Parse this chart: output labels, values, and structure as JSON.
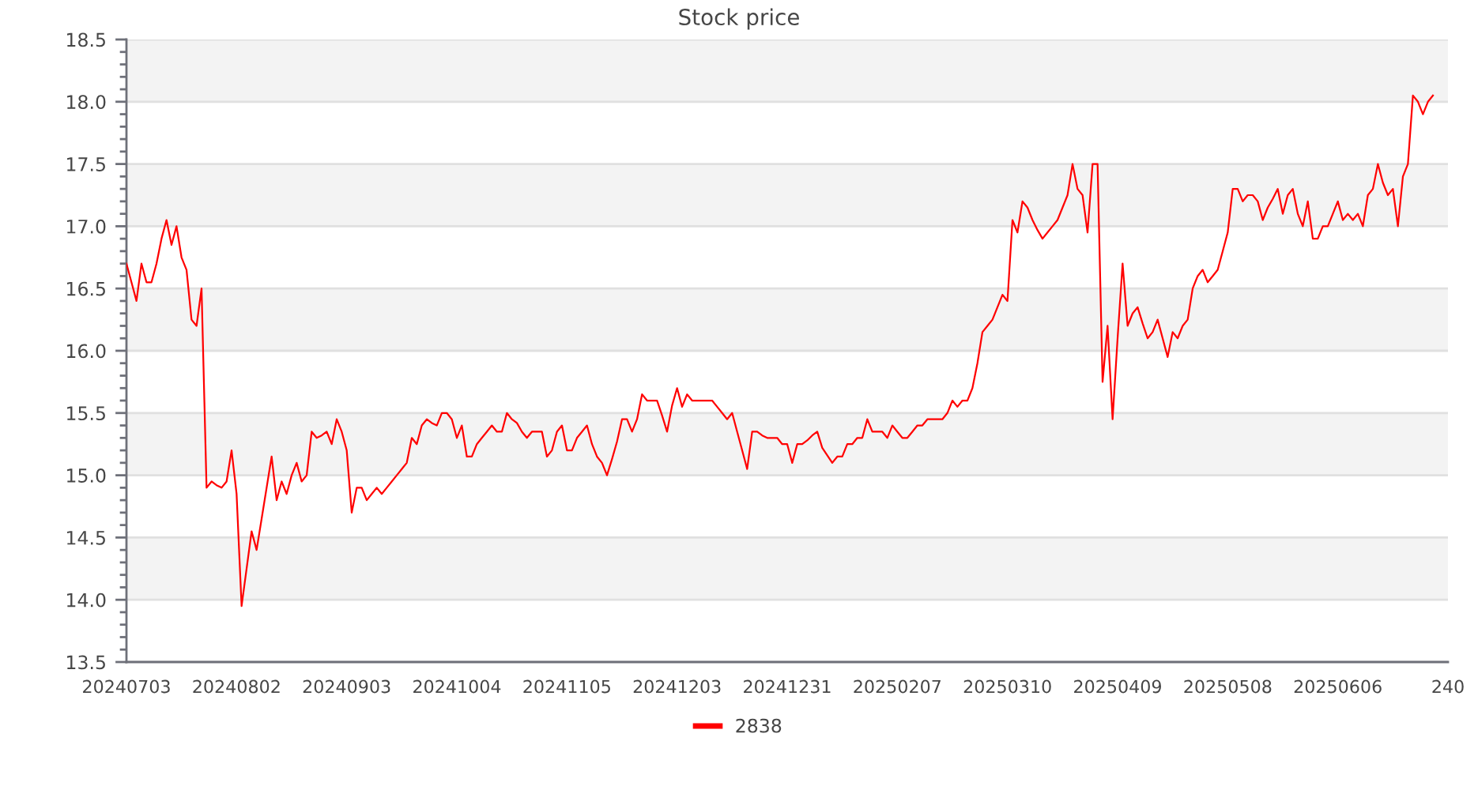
{
  "chart_data": {
    "type": "line",
    "title": "Stock price",
    "categories": [
      "20240703",
      null,
      null,
      null,
      null,
      null,
      null,
      null,
      null,
      null,
      null,
      null,
      null,
      null,
      null,
      null,
      null,
      null,
      null,
      null,
      null,
      null,
      "20240802",
      null,
      null,
      null,
      null,
      null,
      null,
      null,
      null,
      null,
      null,
      null,
      null,
      null,
      null,
      null,
      null,
      null,
      null,
      null,
      null,
      null,
      "20240903",
      null,
      null,
      null,
      null,
      null,
      null,
      null,
      null,
      null,
      null,
      null,
      null,
      null,
      null,
      null,
      null,
      null,
      null,
      null,
      null,
      null,
      "20241004",
      null,
      null,
      null,
      null,
      null,
      null,
      null,
      null,
      null,
      null,
      null,
      null,
      null,
      null,
      null,
      null,
      null,
      null,
      null,
      null,
      null,
      "20241105",
      null,
      null,
      null,
      null,
      null,
      null,
      null,
      null,
      null,
      null,
      null,
      null,
      null,
      null,
      null,
      null,
      null,
      null,
      null,
      null,
      null,
      "20241203",
      null,
      null,
      null,
      null,
      null,
      null,
      null,
      null,
      null,
      null,
      null,
      null,
      null,
      null,
      null,
      null,
      null,
      null,
      null,
      null,
      null,
      "20241231",
      null,
      null,
      null,
      null,
      null,
      null,
      null,
      null,
      null,
      null,
      null,
      null,
      null,
      null,
      null,
      null,
      null,
      null,
      null,
      null,
      null,
      "20250207",
      null,
      null,
      null,
      null,
      null,
      null,
      null,
      null,
      null,
      null,
      null,
      null,
      null,
      null,
      null,
      null,
      null,
      null,
      null,
      null,
      null,
      "20250310",
      null,
      null,
      null,
      null,
      null,
      null,
      null,
      null,
      null,
      null,
      null,
      null,
      null,
      null,
      null,
      null,
      null,
      null,
      null,
      null,
      null,
      "20250409",
      null,
      null,
      null,
      null,
      null,
      null,
      null,
      null,
      null,
      null,
      null,
      null,
      null,
      null,
      null,
      null,
      null,
      null,
      null,
      null,
      null,
      "20250508",
      null,
      null,
      null,
      null,
      null,
      null,
      null,
      null,
      null,
      null,
      null,
      null,
      null,
      null,
      null,
      null,
      null,
      null,
      null,
      null,
      null,
      "20250606",
      null,
      null,
      null,
      null,
      null,
      null,
      null,
      null,
      null,
      null,
      null,
      null,
      null,
      null,
      null,
      null,
      null,
      null,
      null,
      null,
      null,
      "240"
    ],
    "series": [
      {
        "name": "2838",
        "color": "#ff0000",
        "values": [
          16.7,
          16.55,
          16.4,
          16.7,
          16.55,
          16.55,
          16.7,
          16.9,
          17.05,
          16.85,
          17.0,
          16.75,
          16.65,
          16.25,
          16.2,
          16.5,
          14.9,
          14.95,
          14.92,
          14.9,
          14.95,
          15.2,
          14.85,
          13.95,
          14.25,
          14.55,
          14.4,
          14.65,
          14.9,
          15.15,
          14.8,
          14.95,
          14.85,
          15.0,
          15.1,
          14.95,
          15.0,
          15.35,
          15.3,
          15.32,
          15.35,
          15.25,
          15.45,
          15.35,
          15.2,
          14.7,
          14.9,
          14.9,
          14.8,
          14.85,
          14.9,
          14.85,
          14.9,
          14.95,
          15.0,
          15.05,
          15.1,
          15.3,
          15.25,
          15.4,
          15.45,
          15.42,
          15.4,
          15.5,
          15.5,
          15.45,
          15.3,
          15.4,
          15.15,
          15.15,
          15.25,
          15.3,
          15.35,
          15.4,
          15.35,
          15.35,
          15.5,
          15.45,
          15.42,
          15.35,
          15.3,
          15.35,
          15.35,
          15.35,
          15.15,
          15.2,
          15.35,
          15.4,
          15.2,
          15.2,
          15.3,
          15.35,
          15.4,
          15.25,
          15.15,
          15.1,
          15.0,
          15.13,
          15.27,
          15.45,
          15.45,
          15.35,
          15.45,
          15.65,
          15.6,
          15.6,
          15.6,
          15.48,
          15.35,
          15.56,
          15.7,
          15.55,
          15.65,
          15.6,
          15.6,
          15.6,
          15.6,
          15.6,
          15.55,
          15.5,
          15.45,
          15.5,
          15.35,
          15.2,
          15.05,
          15.35,
          15.35,
          15.32,
          15.3,
          15.3,
          15.3,
          15.25,
          15.25,
          15.1,
          15.25,
          15.25,
          15.28,
          15.32,
          15.35,
          15.22,
          15.16,
          15.1,
          15.15,
          15.15,
          15.25,
          15.25,
          15.3,
          15.3,
          15.45,
          15.35,
          15.35,
          15.35,
          15.3,
          15.4,
          15.35,
          15.3,
          15.3,
          15.35,
          15.4,
          15.4,
          15.45,
          15.45,
          15.45,
          15.45,
          15.5,
          15.6,
          15.55,
          15.6,
          15.6,
          15.7,
          15.9,
          16.15,
          16.2,
          16.25,
          16.35,
          16.45,
          16.4,
          17.05,
          16.95,
          17.2,
          17.15,
          17.05,
          16.97,
          16.9,
          16.95,
          17.0,
          17.05,
          17.15,
          17.25,
          17.5,
          17.3,
          17.25,
          16.95,
          17.5,
          17.5,
          15.75,
          16.2,
          15.45,
          16.1,
          16.7,
          16.2,
          16.3,
          16.35,
          16.22,
          16.1,
          16.15,
          16.25,
          16.1,
          15.95,
          16.15,
          16.1,
          16.2,
          16.25,
          16.5,
          16.6,
          16.65,
          16.55,
          16.6,
          16.65,
          16.8,
          16.95,
          17.3,
          17.3,
          17.2,
          17.25,
          17.25,
          17.2,
          17.05,
          17.15,
          17.22,
          17.3,
          17.1,
          17.25,
          17.3,
          17.1,
          17.0,
          17.2,
          16.9,
          16.9,
          17.0,
          17.0,
          17.1,
          17.2,
          17.05,
          17.1,
          17.05,
          17.1,
          17.0,
          17.25,
          17.3,
          17.5,
          17.35,
          17.25,
          17.3,
          17.0,
          17.4,
          17.5,
          18.05,
          18.0,
          17.9,
          18.0,
          18.05,
          null,
          null,
          null
        ]
      }
    ],
    "ylim": [
      13.5,
      18.5
    ],
    "yticks": [
      13.5,
      {
        "value": 14,
        "label": "14.0"
      },
      14.5,
      {
        "value": 15,
        "label": "15.0"
      },
      15.5,
      {
        "value": 16,
        "label": "16.0"
      },
      16.5,
      {
        "value": 17,
        "label": "17.0"
      },
      17.5,
      {
        "value": 18,
        "label": "18.0"
      },
      18.5
    ],
    "bands": [
      {
        "axis": "y",
        "from": 14.0,
        "to": 14.5,
        "color": "#f3f3f3"
      },
      {
        "axis": "y",
        "from": 15.0,
        "to": 15.5,
        "color": "#f3f3f3"
      },
      {
        "axis": "y",
        "from": 16.0,
        "to": 16.5,
        "color": "#f3f3f3"
      },
      {
        "axis": "y",
        "from": 17.0,
        "to": 17.5,
        "color": "#f3f3f3"
      },
      {
        "axis": "y",
        "from": 18.0,
        "to": 18.5,
        "color": "#f3f3f3"
      }
    ],
    "grid": "y",
    "legend": "bottom"
  }
}
